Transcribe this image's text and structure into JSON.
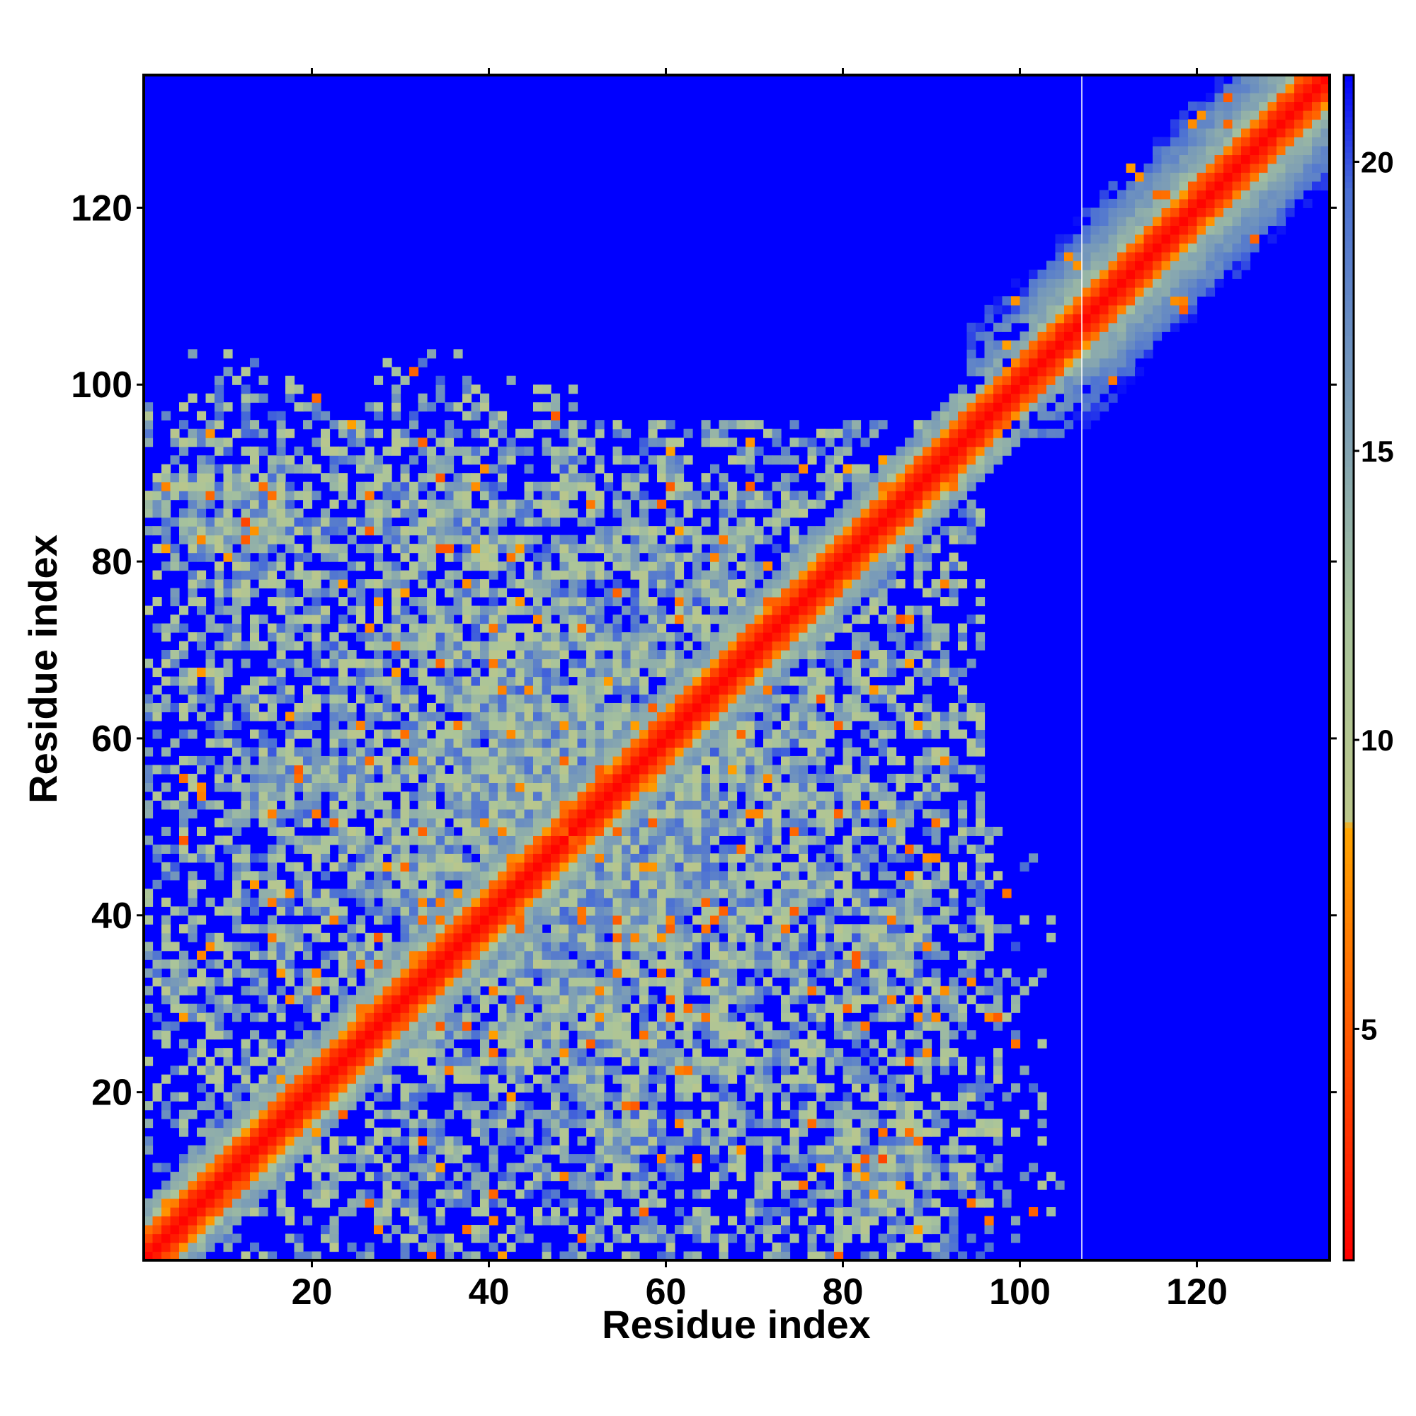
{
  "chart_data": {
    "type": "heatmap",
    "title": "",
    "xlabel": "Residue index",
    "ylabel": "Residue index",
    "xlim": [
      1,
      134
    ],
    "ylim": [
      1,
      134
    ],
    "n_residues": 134,
    "x_ticks": [
      20,
      40,
      60,
      80,
      100,
      120
    ],
    "y_ticks": [
      20,
      40,
      60,
      80,
      100,
      120
    ],
    "colorbar": {
      "range": [
        1,
        21.5
      ],
      "ticks": [
        5,
        10,
        15,
        20
      ],
      "stops": [
        {
          "v": 1,
          "color": "#ff0000"
        },
        {
          "v": 5,
          "color": "#ff5a00"
        },
        {
          "v": 8.5,
          "color": "#ffa500"
        },
        {
          "v": 8.6,
          "color": "#bcc78a"
        },
        {
          "v": 12,
          "color": "#a9c49b"
        },
        {
          "v": 17,
          "color": "#6b8fc0"
        },
        {
          "v": 19.5,
          "color": "#4a6fd5"
        },
        {
          "v": 21.5,
          "color": "#0000ff"
        }
      ]
    },
    "background_value": 21.5,
    "background_color": "#0000ff",
    "divider_x": 107,
    "divider_color": "#ffffff",
    "description": "Symmetric residue-residue distance map; strong diagonal band (values ~1-3) with off-diagonal contact clusters.",
    "contact_clusters": [
      {
        "x": 12,
        "y": 84,
        "value": 4
      },
      {
        "x": 15,
        "y": 87,
        "value": 6
      },
      {
        "x": 34,
        "y": 81,
        "value": 5
      },
      {
        "x": 30,
        "y": 60,
        "value": 6
      },
      {
        "x": 18,
        "y": 56,
        "value": 5
      },
      {
        "x": 27,
        "y": 37,
        "value": 5
      },
      {
        "x": 34,
        "y": 27,
        "value": 5
      },
      {
        "x": 57,
        "y": 26,
        "value": 6
      },
      {
        "x": 55,
        "y": 18,
        "value": 6
      },
      {
        "x": 81,
        "y": 35,
        "value": 5
      },
      {
        "x": 82,
        "y": 12,
        "value": 5
      },
      {
        "x": 88,
        "y": 14,
        "value": 6
      },
      {
        "x": 62,
        "y": 65,
        "value": 6
      },
      {
        "x": 48,
        "y": 49,
        "value": 5
      }
    ]
  }
}
